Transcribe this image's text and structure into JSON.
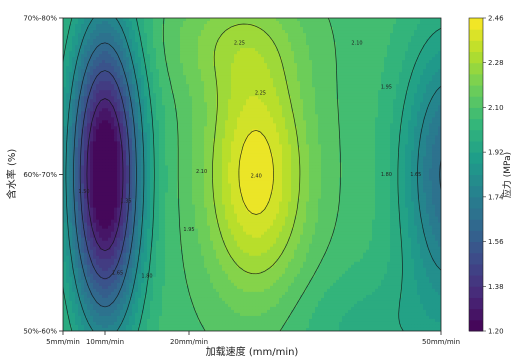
{
  "chart_data": {
    "type": "heatmap",
    "subtype": "filled-contour",
    "xlabel": "加载速度 (mm/min)",
    "ylabel": "含水率 (%)",
    "colorbar_label": "应力 (MPa)",
    "colormap": "viridis",
    "x_ticks": [
      {
        "label": "5mm/min",
        "value": 5
      },
      {
        "label": "10mm/min",
        "value": 10
      },
      {
        "label": "20mm/min",
        "value": 20
      },
      {
        "label": "50mm/min",
        "value": 50
      }
    ],
    "xlim": [
      5,
      50
    ],
    "y_ticks": [
      {
        "label": "50%-60%",
        "value": 0
      },
      {
        "label": "60%-70%",
        "value": 1
      },
      {
        "label": "70%-80%",
        "value": 2
      }
    ],
    "ylim": [
      0,
      2
    ],
    "colorbar_ticks": [
      "1.20",
      "1.38",
      "1.56",
      "1.74",
      "1.92",
      "2.10",
      "2.28",
      "2.46"
    ],
    "value_range": [
      1.2,
      2.46
    ],
    "contour_labels": [
      {
        "text": "2.25",
        "x": 26,
        "y": 1.84
      },
      {
        "text": "2.25",
        "x": 28.5,
        "y": 1.52
      },
      {
        "text": "2.40",
        "x": 28,
        "y": 0.99
      },
      {
        "text": "2.10",
        "x": 21.5,
        "y": 1.02
      },
      {
        "text": "2.10",
        "x": 40,
        "y": 1.84
      },
      {
        "text": "1.95",
        "x": 20,
        "y": 0.65
      },
      {
        "text": "1.95",
        "x": 43.5,
        "y": 1.56
      },
      {
        "text": "1.80",
        "x": 43.5,
        "y": 1.0
      },
      {
        "text": "1.65",
        "x": 47,
        "y": 1.0
      },
      {
        "text": "1.80",
        "x": 15,
        "y": 0.35
      },
      {
        "text": "1.65",
        "x": 11.5,
        "y": 0.37
      },
      {
        "text": "1.50",
        "x": 7.5,
        "y": 0.89
      },
      {
        "text": "1.35",
        "x": 12.5,
        "y": 0.83
      }
    ]
  }
}
